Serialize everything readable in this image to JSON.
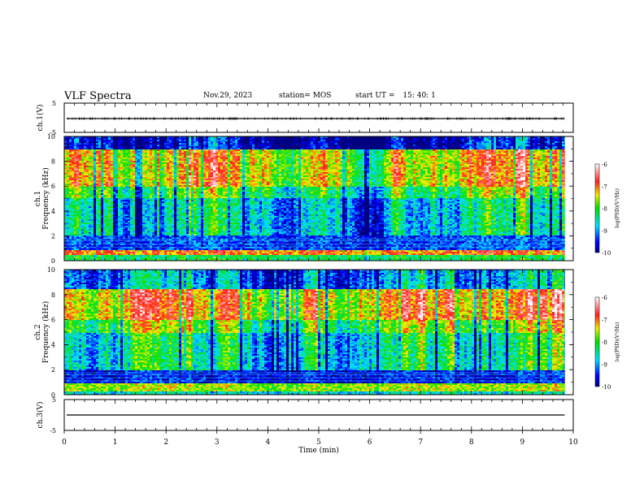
{
  "header": {
    "title": "VLF Spectra",
    "date": "Nov.29, 2023",
    "station": "station= MOS",
    "start_label": "start  UT  =",
    "start_time": "15: 40: 1"
  },
  "colors": {
    "low": "#00008a",
    "mid": "#00c8ff",
    "green": "#10e000",
    "yellow": "#f0f000",
    "high": "#ff2a1a",
    "max": "#ffffff"
  },
  "chart_data": [
    {
      "type": "line",
      "name": "ch1-waveform",
      "ylabel": "ch.1(V)",
      "ylim": [
        -5,
        5
      ],
      "yticks": [
        "5",
        "-5"
      ],
      "x": [
        0,
        10
      ],
      "values": [
        0,
        0
      ]
    },
    {
      "type": "heatmap",
      "name": "ch1-spectrogram",
      "ylabel": "ch.1",
      "ylabel2": "Frequency (kHz)",
      "ylim": [
        0,
        10
      ],
      "yticks": [
        "0",
        "2",
        "4",
        "6",
        "8",
        "10"
      ],
      "xlim": [
        0,
        10
      ],
      "data_end": 9.83,
      "bands": [
        {
          "y0": 0,
          "y1": 0.4,
          "level": -8.2
        },
        {
          "y0": 0.4,
          "y1": 0.9,
          "level": -7.0
        },
        {
          "y0": 0.9,
          "y1": 2.0,
          "level": -9.3
        },
        {
          "y0": 2.0,
          "y1": 5.0,
          "level": -8.6
        },
        {
          "y0": 5.0,
          "y1": 6.0,
          "level": -8.0
        },
        {
          "y0": 6.0,
          "y1": 9.0,
          "level": -7.3
        },
        {
          "y0": 9.0,
          "y1": 10,
          "level": -9.6
        }
      ],
      "colorbar": {
        "label": "log(PSD)(V²/Hz)",
        "min": -10,
        "max": -6,
        "ticks": [
          "-6",
          "-7",
          "-8",
          "-9",
          "-10"
        ]
      }
    },
    {
      "type": "heatmap",
      "name": "ch2-spectrogram",
      "ylabel": "ch.2",
      "ylabel2": "Frequency (kHz)",
      "ylim": [
        0,
        10
      ],
      "yticks": [
        "0",
        "2",
        "4",
        "6",
        "8",
        "10"
      ],
      "xlim": [
        0,
        10
      ],
      "data_end": 9.83,
      "bands": [
        {
          "y0": 0,
          "y1": 0.3,
          "level": -8.6
        },
        {
          "y0": 0.3,
          "y1": 0.9,
          "level": -7.6
        },
        {
          "y0": 0.9,
          "y1": 2.0,
          "level": -9.5
        },
        {
          "y0": 2.0,
          "y1": 5.0,
          "level": -8.4
        },
        {
          "y0": 5.0,
          "y1": 6.0,
          "level": -7.8
        },
        {
          "y0": 6.0,
          "y1": 8.5,
          "level": -7.1
        },
        {
          "y0": 8.5,
          "y1": 10,
          "level": -8.9
        }
      ],
      "colorbar": {
        "label": "log(PSD)(V²/Hz)",
        "min": -10,
        "max": -6,
        "ticks": [
          "-6",
          "-7",
          "-8",
          "-9",
          "-10"
        ]
      }
    },
    {
      "type": "line",
      "name": "ch3-waveform",
      "ylabel": "ch.3(V)",
      "ylim": [
        -5,
        5
      ],
      "yticks": [
        "5",
        "-5"
      ],
      "x": [
        0,
        10
      ],
      "values": [
        0,
        0
      ]
    }
  ],
  "xaxis": {
    "label": "Time  (min)",
    "ticks": [
      "0",
      "1",
      "2",
      "3",
      "4",
      "5",
      "6",
      "7",
      "8",
      "9",
      "10"
    ],
    "range": [
      0,
      10
    ]
  }
}
